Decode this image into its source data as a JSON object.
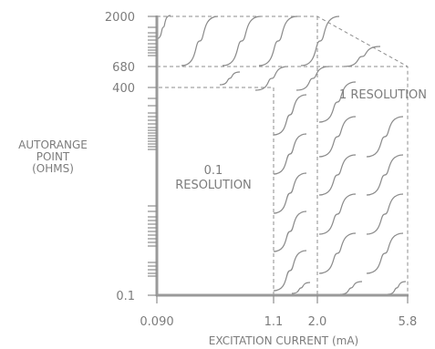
{
  "chart_data": {
    "type": "line",
    "ylabel": [
      "AUTORANGE",
      "POINT",
      "(OHMS)"
    ],
    "xlabel": "EXCITATION CURRENT (mA)",
    "y_axis": {
      "scale": "log",
      "ticks": [
        {
          "value": 2000,
          "label": "2000"
        },
        {
          "value": 680,
          "label": "680"
        },
        {
          "value": 400,
          "label": "400"
        },
        {
          "value": 0.1,
          "label": "0.1"
        }
      ],
      "range": [
        0.1,
        2000
      ]
    },
    "x_axis": {
      "scale": "log",
      "ticks": [
        {
          "value": 0.09,
          "label": "0.090"
        },
        {
          "value": 1.1,
          "label": "1.1"
        },
        {
          "value": 2.0,
          "label": "2.0"
        },
        {
          "value": 5.8,
          "label": "5.8"
        }
      ],
      "range": [
        0.09,
        5.8
      ]
    },
    "regions": [
      {
        "label": [
          "0.1",
          "RESOLUTION"
        ],
        "x_range": [
          0.09,
          1.1
        ],
        "y_range": [
          0.1,
          400
        ]
      },
      {
        "label": [
          "1 RESOLUTION"
        ],
        "x_range": [
          1.1,
          5.8
        ],
        "y_range": [
          0.1,
          680
        ]
      }
    ],
    "boundary": [
      {
        "x": 1.1,
        "y": 0.1
      },
      {
        "x": 1.1,
        "y": 400
      },
      {
        "x": 0.09,
        "y": 400
      },
      {
        "x": 0.09,
        "y": 2000
      },
      {
        "x": 2.0,
        "y": 2000
      },
      {
        "x": 5.8,
        "y": 680
      },
      {
        "x": 5.8,
        "y": 0.1
      }
    ],
    "grid": false,
    "legend": "none"
  }
}
